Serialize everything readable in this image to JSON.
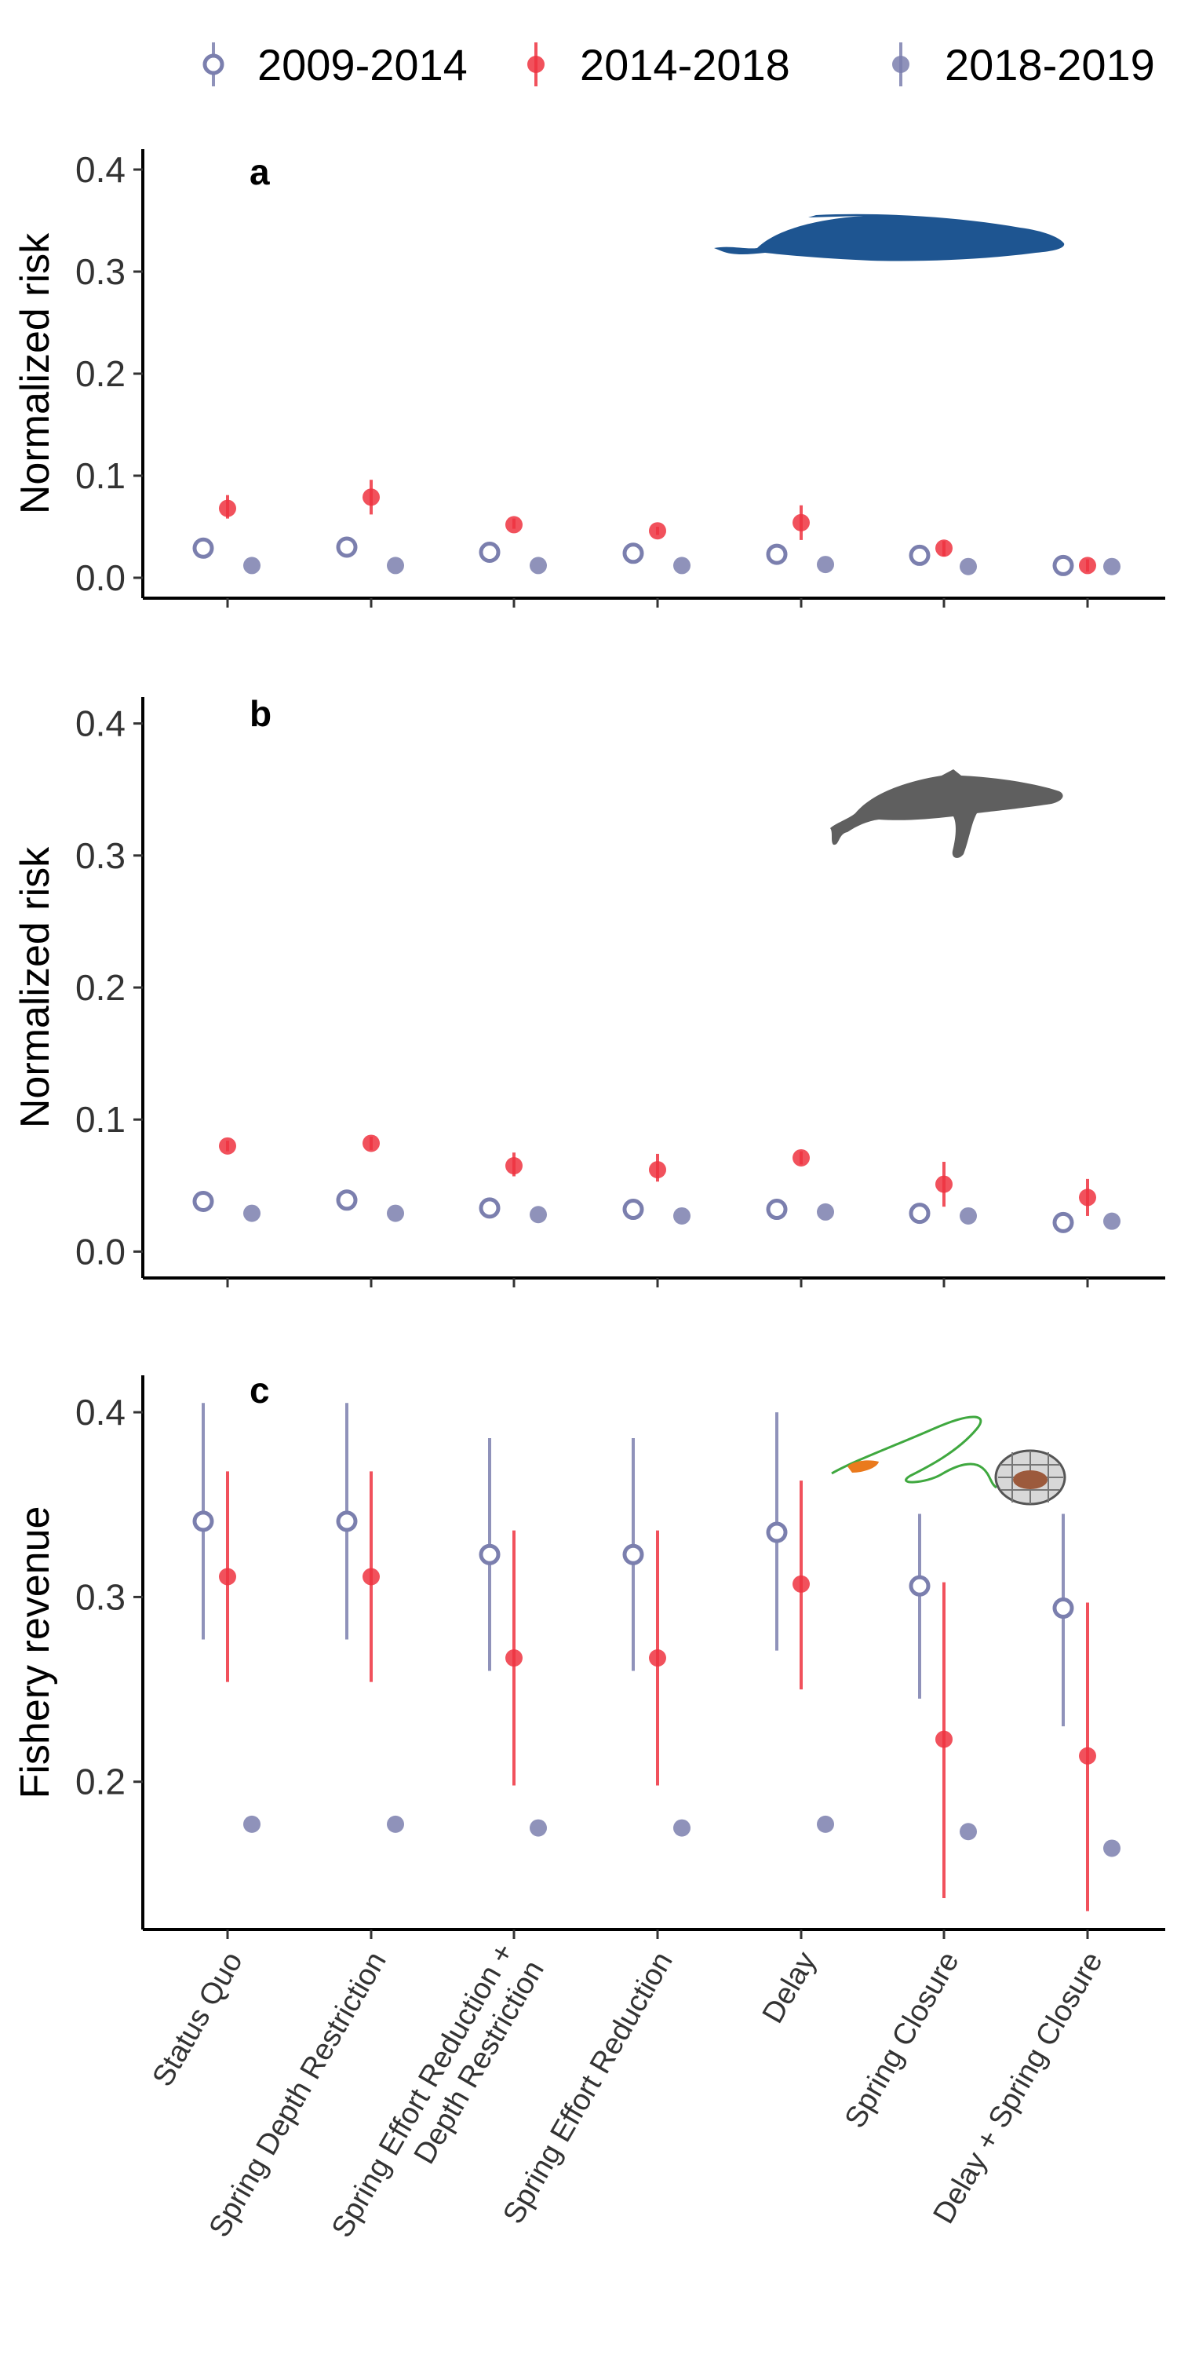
{
  "legend": [
    {
      "name": "2009-2014",
      "marker": "open",
      "color": "#7b7fae"
    },
    {
      "name": "2014-2018",
      "marker": "filled",
      "color": "#ee3340"
    },
    {
      "name": "2018-2019",
      "marker": "filled",
      "color": "#7b7fae"
    }
  ],
  "categories": [
    [
      "Status Quo"
    ],
    [
      "Spring Depth Restriction"
    ],
    [
      "Spring Effort Reduction +",
      "Depth Restriction"
    ],
    [
      "Spring Effort Reduction"
    ],
    [
      "Delay"
    ],
    [
      "Spring Closure"
    ],
    [
      "Delay + Spring Closure"
    ]
  ],
  "icons": {
    "a": "blue-whale-icon",
    "b": "humpback-whale-icon",
    "c": "crab-pot-icon"
  },
  "chart_data": [
    {
      "panel": "a",
      "type": "scatter",
      "ylabel": "Normalized risk",
      "ylim": [
        -0.02,
        0.42
      ],
      "yticks": [
        0.0,
        0.1,
        0.2,
        0.3,
        0.4
      ],
      "tick_labels": [
        "0.0",
        "0.1",
        "0.2",
        "0.3",
        "0.4"
      ],
      "series": [
        {
          "name": "2009-2014",
          "values": [
            0.029,
            0.03,
            0.025,
            0.024,
            0.023,
            0.022,
            0.012
          ],
          "lower": [
            0.029,
            0.03,
            0.025,
            0.024,
            0.023,
            0.022,
            0.012
          ],
          "upper": [
            0.029,
            0.03,
            0.025,
            0.024,
            0.023,
            0.022,
            0.012
          ]
        },
        {
          "name": "2014-2018",
          "values": [
            0.068,
            0.079,
            0.052,
            0.046,
            0.054,
            0.029,
            0.012
          ],
          "lower": [
            0.058,
            0.062,
            0.048,
            0.042,
            0.037,
            0.021,
            0.006
          ],
          "upper": [
            0.081,
            0.096,
            0.058,
            0.05,
            0.071,
            0.036,
            0.018
          ]
        },
        {
          "name": "2018-2019",
          "values": [
            0.012,
            0.012,
            0.012,
            0.012,
            0.013,
            0.011,
            0.011
          ],
          "lower": [
            0.012,
            0.012,
            0.012,
            0.012,
            0.013,
            0.011,
            0.011
          ],
          "upper": [
            0.012,
            0.012,
            0.012,
            0.012,
            0.013,
            0.011,
            0.011
          ]
        }
      ]
    },
    {
      "panel": "b",
      "type": "scatter",
      "ylabel": "Normalized risk",
      "ylim": [
        -0.02,
        0.42
      ],
      "yticks": [
        0.0,
        0.1,
        0.2,
        0.3,
        0.4
      ],
      "tick_labels": [
        "0.0",
        "0.1",
        "0.2",
        "0.3",
        "0.4"
      ],
      "series": [
        {
          "name": "2009-2014",
          "values": [
            0.038,
            0.039,
            0.033,
            0.032,
            0.032,
            0.029,
            0.022
          ],
          "lower": [
            0.038,
            0.039,
            0.033,
            0.032,
            0.032,
            0.029,
            0.022
          ],
          "upper": [
            0.038,
            0.039,
            0.033,
            0.032,
            0.032,
            0.029,
            0.022
          ]
        },
        {
          "name": "2014-2018",
          "values": [
            0.08,
            0.082,
            0.065,
            0.062,
            0.071,
            0.051,
            0.041
          ],
          "lower": [
            0.076,
            0.077,
            0.057,
            0.053,
            0.066,
            0.034,
            0.027
          ],
          "upper": [
            0.084,
            0.087,
            0.075,
            0.074,
            0.076,
            0.068,
            0.055
          ]
        },
        {
          "name": "2018-2019",
          "values": [
            0.029,
            0.029,
            0.028,
            0.027,
            0.03,
            0.027,
            0.023
          ],
          "lower": [
            0.029,
            0.029,
            0.028,
            0.027,
            0.03,
            0.027,
            0.023
          ],
          "upper": [
            0.029,
            0.029,
            0.028,
            0.027,
            0.03,
            0.027,
            0.023
          ]
        }
      ]
    },
    {
      "panel": "c",
      "type": "scatter",
      "ylabel": "Fishery revenue",
      "ylim": [
        0.12,
        0.42
      ],
      "yticks": [
        0.2,
        0.3,
        0.4
      ],
      "tick_labels": [
        "0.2",
        "0.3",
        "0.4"
      ],
      "series": [
        {
          "name": "2009-2014",
          "values": [
            0.341,
            0.341,
            0.323,
            0.323,
            0.335,
            0.306,
            0.294
          ],
          "lower": [
            0.277,
            0.277,
            0.26,
            0.26,
            0.271,
            0.245,
            0.23
          ],
          "upper": [
            0.405,
            0.405,
            0.386,
            0.386,
            0.4,
            0.345,
            0.345
          ]
        },
        {
          "name": "2014-2018",
          "values": [
            0.311,
            0.311,
            0.267,
            0.267,
            0.307,
            0.223,
            0.214
          ],
          "lower": [
            0.254,
            0.254,
            0.198,
            0.198,
            0.25,
            0.137,
            0.13
          ],
          "upper": [
            0.368,
            0.368,
            0.336,
            0.336,
            0.363,
            0.308,
            0.297
          ]
        },
        {
          "name": "2018-2019",
          "values": [
            0.177,
            0.177,
            0.175,
            0.175,
            0.177,
            0.173,
            0.164
          ],
          "lower": [
            0.177,
            0.177,
            0.175,
            0.175,
            0.177,
            0.173,
            0.164
          ],
          "upper": [
            0.177,
            0.177,
            0.175,
            0.175,
            0.177,
            0.173,
            0.164
          ]
        }
      ]
    }
  ]
}
